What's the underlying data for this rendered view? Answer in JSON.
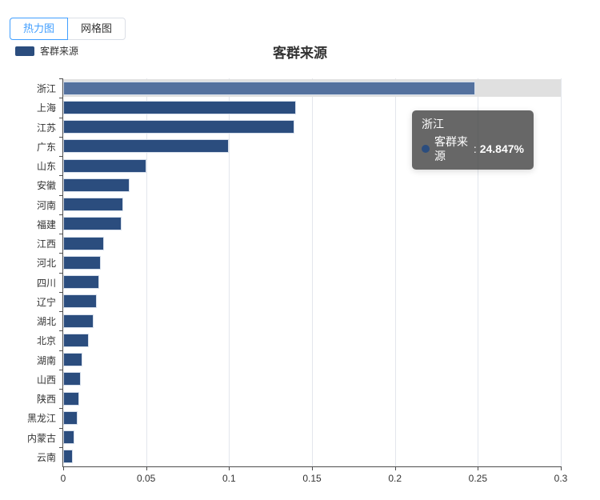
{
  "tabs": [
    {
      "label": "热力图",
      "active": true
    },
    {
      "label": "网格图",
      "active": false
    }
  ],
  "legend": {
    "label": "客群来源",
    "color": "#2b4d7e"
  },
  "title": "客群来源",
  "tooltip": {
    "title": "浙江",
    "series_label": "客群来源",
    "separator": " : ",
    "value": "24.847%",
    "marker_color": "#2b4d7e"
  },
  "chart_data": {
    "type": "bar",
    "orientation": "horizontal",
    "title": "客群来源",
    "series_name": "客群来源",
    "categories": [
      "浙江",
      "上海",
      "江苏",
      "广东",
      "山东",
      "安徽",
      "河南",
      "福建",
      "江西",
      "河北",
      "四川",
      "辽宁",
      "湖北",
      "北京",
      "湖南",
      "山西",
      "陕西",
      "黑龙江",
      "内蒙古",
      "云南"
    ],
    "values": [
      0.24847,
      0.1404,
      0.1392,
      0.1,
      0.0503,
      0.0399,
      0.036,
      0.0354,
      0.0244,
      0.0229,
      0.0216,
      0.0202,
      0.0183,
      0.0152,
      0.0115,
      0.0107,
      0.0096,
      0.0085,
      0.0067,
      0.0059
    ],
    "xlim": [
      0,
      0.3
    ],
    "x_ticks": [
      0,
      0.05,
      0.1,
      0.15,
      0.2,
      0.25,
      0.3
    ],
    "x_tick_labels": [
      "0",
      "0.05",
      "0.1",
      "0.15",
      "0.2",
      "0.25",
      "0.3"
    ],
    "grid": true,
    "legend_position": "top-left",
    "highlighted_category": "浙江",
    "highlighted_value_percent": "24.847%",
    "bar_color": "#2b4d7e",
    "highlight_bar_color": "#54719e",
    "highlight_row_bg": "#e0e0e0",
    "grid_color": "#e3e6ec",
    "axis_color": "#4d4d4d"
  }
}
